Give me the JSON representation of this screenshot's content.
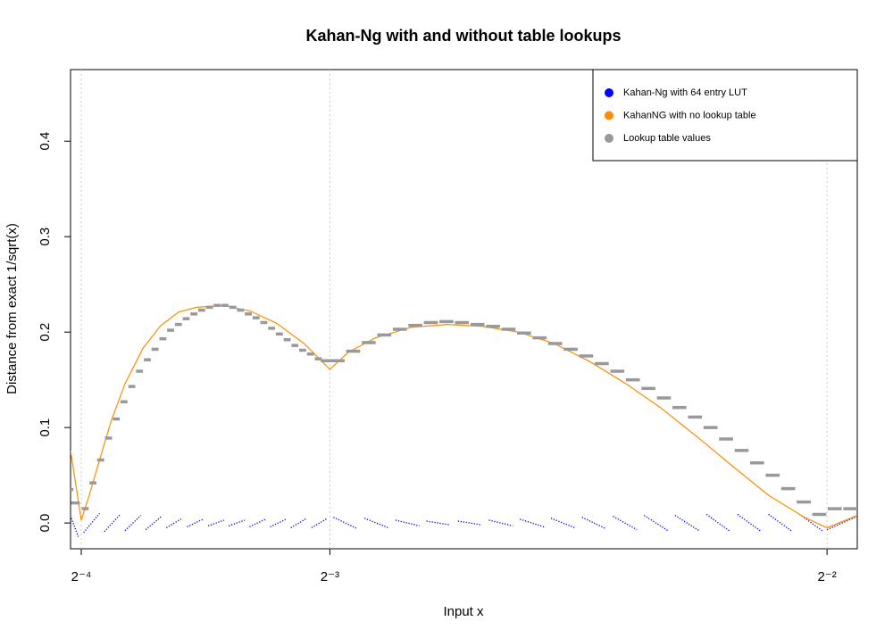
{
  "chart_data": {
    "type": "line",
    "title": "Kahan-Ng with and without table lookups",
    "xlabel": "Input x",
    "ylabel": "Distance from exact 1/sqrt(x)",
    "xlim": [
      0.0598,
      0.2576
    ],
    "ylim": [
      -0.027,
      0.475
    ],
    "xticks": [
      {
        "value": 0.0625,
        "label": "2⁻⁴"
      },
      {
        "value": 0.125,
        "label": "2⁻³"
      },
      {
        "value": 0.25,
        "label": "2⁻²"
      }
    ],
    "yticks": [
      {
        "value": 0,
        "label": "0.0"
      },
      0.1,
      0.2,
      0.3,
      0.4
    ],
    "grid": "x",
    "legend": "topright",
    "series": [
      {
        "name": "Kahan-Ng with 64 entry LUT",
        "color": "#0000ff",
        "style": "dotted",
        "x": [
          0.06,
          0.0618,
          null,
          0.0631,
          0.0671,
          null,
          0.0683,
          0.0723,
          null,
          0.0735,
          0.0775,
          null,
          0.0787,
          0.0827,
          null,
          0.0839,
          0.0879,
          null,
          0.0891,
          0.0931,
          null,
          0.0944,
          0.0984,
          null,
          0.0996,
          0.1036,
          null,
          0.1048,
          0.1088,
          null,
          0.11,
          0.114,
          null,
          0.1152,
          0.1192,
          null,
          0.1204,
          0.1244,
          null,
          0.1259,
          0.1319,
          null,
          0.1337,
          0.1397,
          null,
          0.1415,
          0.1475,
          null,
          0.1493,
          0.1553,
          null,
          0.1572,
          0.1632,
          null,
          0.165,
          0.171,
          null,
          0.1728,
          0.1788,
          null,
          0.1806,
          0.1866,
          null,
          0.1884,
          0.1944,
          null,
          0.1962,
          0.2022,
          null,
          0.204,
          0.21,
          null,
          0.2118,
          0.2178,
          null,
          0.2197,
          0.2257,
          null,
          0.2275,
          0.2335,
          null,
          0.2353,
          0.2413,
          null,
          0.2431,
          0.2491,
          null,
          0.25,
          0.2576
        ],
        "values": [
          0.005,
          -0.015,
          null,
          -0.01,
          0.01,
          null,
          -0.009,
          0.009,
          null,
          -0.008,
          0.008,
          null,
          -0.007,
          0.007,
          null,
          -0.005,
          0.005,
          null,
          -0.004,
          0.004,
          null,
          -0.003,
          0.003,
          null,
          -0.003,
          0.003,
          null,
          -0.004,
          0.004,
          null,
          -0.004,
          0.004,
          null,
          -0.005,
          0.005,
          null,
          -0.005,
          0.005,
          null,
          0.006,
          -0.006,
          null,
          0.005,
          -0.005,
          null,
          0.003,
          -0.003,
          null,
          0.002,
          -0.002,
          null,
          0.002,
          -0.002,
          null,
          0.003,
          -0.003,
          null,
          0.004,
          -0.004,
          null,
          0.005,
          -0.005,
          null,
          0.006,
          -0.006,
          null,
          0.007,
          -0.007,
          null,
          0.008,
          -0.008,
          null,
          0.008,
          -0.008,
          null,
          0.009,
          -0.009,
          null,
          0.009,
          -0.009,
          null,
          0.009,
          -0.009,
          null,
          0.009,
          -0.009,
          null,
          -0.007,
          0.007
        ]
      },
      {
        "name": "KahanNG with no lookup table",
        "color": "#ff8c00",
        "style": "solid",
        "x": [
          0.0598,
          0.0612,
          0.0625,
          0.0645,
          0.0668,
          0.0701,
          0.0735,
          0.078,
          0.0825,
          0.087,
          0.0915,
          0.0982,
          0.105,
          0.1117,
          0.1185,
          0.125,
          0.1297,
          0.1365,
          0.1455,
          0.1545,
          0.1634,
          0.1724,
          0.1814,
          0.1904,
          0.1994,
          0.2084,
          0.2174,
          0.2264,
          0.2353,
          0.2443,
          0.25,
          0.2576
        ],
        "values": [
          0.076,
          0.038,
          0.003,
          0.029,
          0.062,
          0.108,
          0.146,
          0.183,
          0.207,
          0.221,
          0.226,
          0.228,
          0.222,
          0.209,
          0.188,
          0.161,
          0.179,
          0.194,
          0.205,
          0.208,
          0.206,
          0.2,
          0.188,
          0.169,
          0.146,
          0.12,
          0.09,
          0.059,
          0.029,
          0.006,
          -0.005,
          0.008
        ]
      },
      {
        "name": "Lookup table values",
        "color": "#999999",
        "style": "dash",
        "x": [
          0.06006,
          0.06104,
          0.06348,
          0.06543,
          0.06738,
          0.06934,
          0.07129,
          0.07324,
          0.0752,
          0.07715,
          0.0791,
          0.08105,
          0.08301,
          0.08496,
          0.08691,
          0.08887,
          0.09082,
          0.09277,
          0.09473,
          0.09668,
          0.09863,
          0.10059,
          0.10254,
          0.10449,
          0.10645,
          0.1084,
          0.11035,
          0.1123,
          0.11426,
          0.11621,
          0.11816,
          0.12012,
          0.12207,
          0.12402,
          0.12695,
          0.13086,
          0.13477,
          0.13867,
          0.14258,
          0.14648,
          0.15039,
          0.1543,
          0.1582,
          0.16211,
          0.16602,
          0.16992,
          0.17383,
          0.17773,
          0.18164,
          0.18555,
          0.18945,
          0.19336,
          0.19727,
          0.20117,
          0.20508,
          0.20898,
          0.21289,
          0.2168,
          0.2207,
          0.22461,
          0.22852,
          0.23242,
          0.23633,
          0.24023,
          0.24414,
          0.24805,
          0.25195,
          0.25586
        ],
        "values": [
          0.035,
          0.021,
          0.015,
          0.042,
          0.066,
          0.089,
          0.109,
          0.127,
          0.143,
          0.159,
          0.171,
          0.182,
          0.193,
          0.202,
          0.208,
          0.214,
          0.219,
          0.223,
          0.226,
          0.228,
          0.228,
          0.226,
          0.223,
          0.219,
          0.215,
          0.21,
          0.204,
          0.198,
          0.192,
          0.186,
          0.181,
          0.177,
          0.172,
          0.17,
          0.17,
          0.18,
          0.189,
          0.197,
          0.203,
          0.207,
          0.21,
          0.211,
          0.21,
          0.208,
          0.206,
          0.203,
          0.199,
          0.194,
          0.188,
          0.182,
          0.175,
          0.167,
          0.159,
          0.15,
          0.141,
          0.131,
          0.121,
          0.111,
          0.1,
          0.088,
          0.076,
          0.063,
          0.05,
          0.036,
          0.022,
          0.009,
          0.015,
          0.015
        ]
      }
    ]
  }
}
